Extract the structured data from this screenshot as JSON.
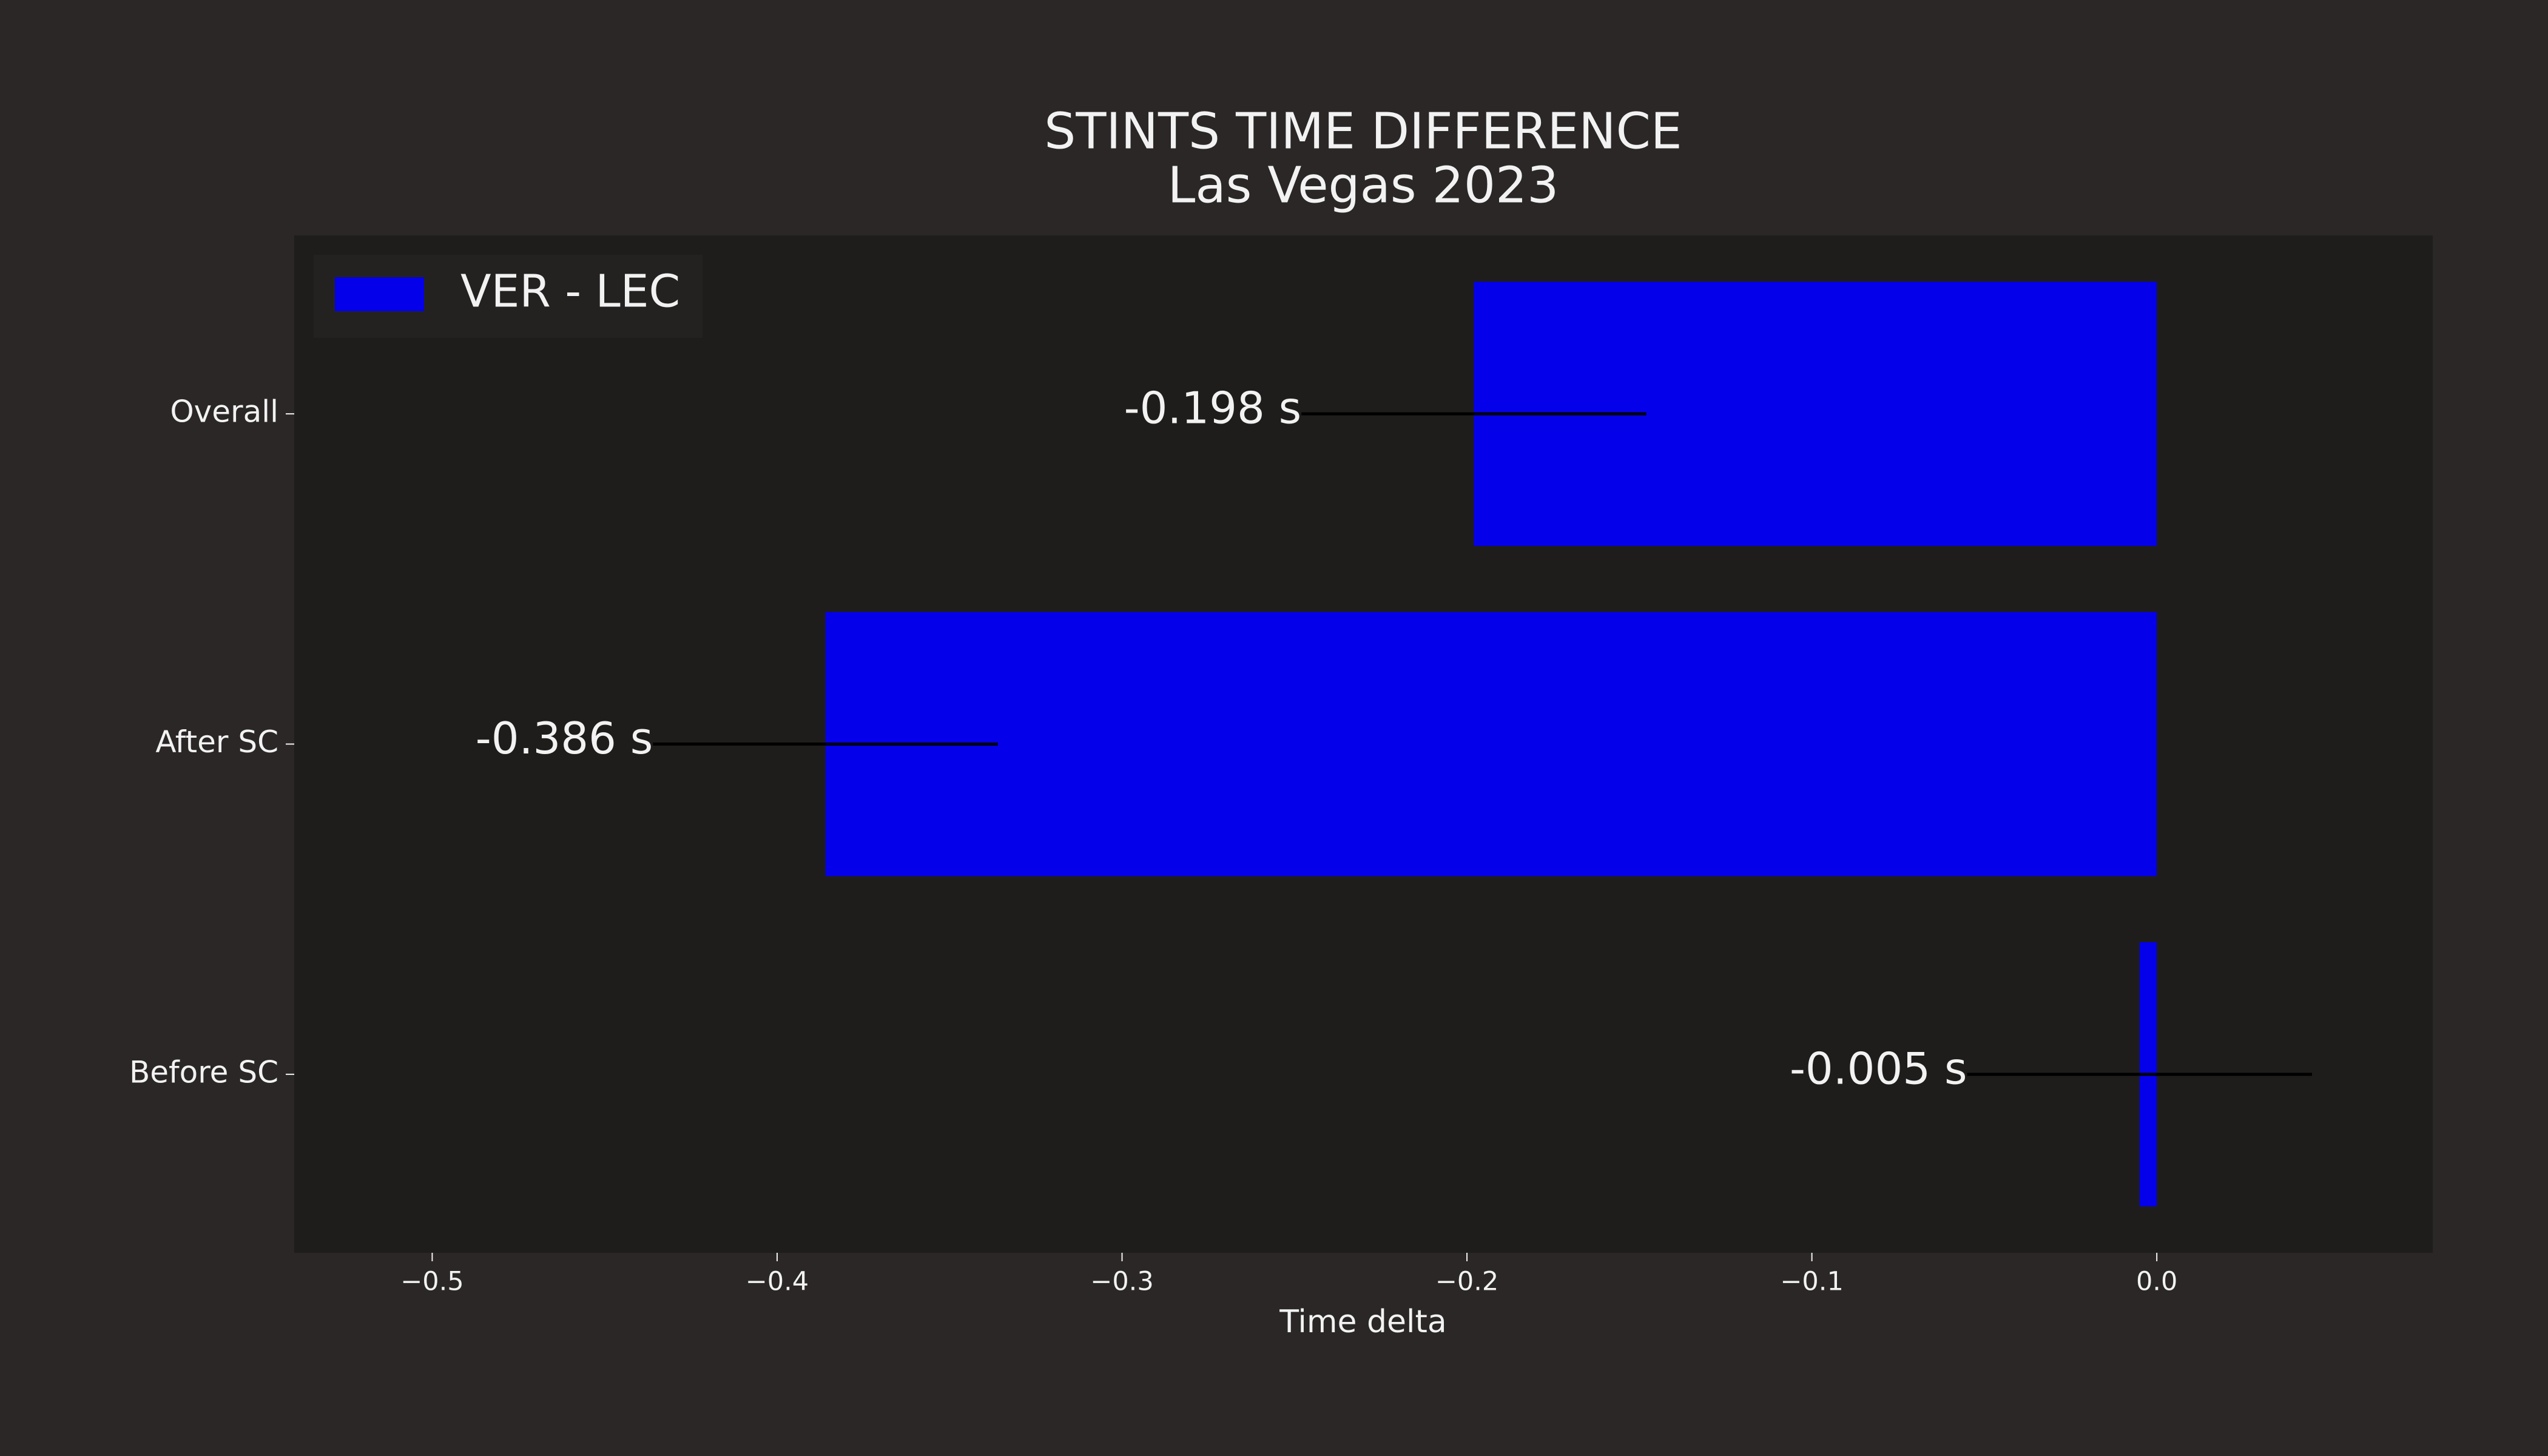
{
  "chart_data": {
    "type": "barh",
    "title": "STINTS TIME DIFFERENCE",
    "subtitle": "Las Vegas 2023",
    "x_label": "Time delta",
    "categories": [
      "Overall",
      "After SC",
      "Before SC"
    ],
    "series": [
      {
        "name": "VER - LEC",
        "color": "#0500ea",
        "values": [
          -0.198,
          -0.386,
          -0.005
        ],
        "value_labels": [
          "-0.198 s",
          "-0.386 s",
          "-0.005 s"
        ]
      }
    ],
    "xlim": [
      -0.54,
      0.08
    ],
    "xticks": [
      {
        "value": -0.5,
        "label": "−0.5"
      },
      {
        "value": -0.4,
        "label": "−0.4"
      },
      {
        "value": -0.3,
        "label": "−0.3"
      },
      {
        "value": -0.2,
        "label": "−0.2"
      },
      {
        "value": -0.1,
        "label": "−0.1"
      },
      {
        "value": 0,
        "label": "0.0"
      }
    ],
    "grid": false,
    "legend": "upper left"
  }
}
